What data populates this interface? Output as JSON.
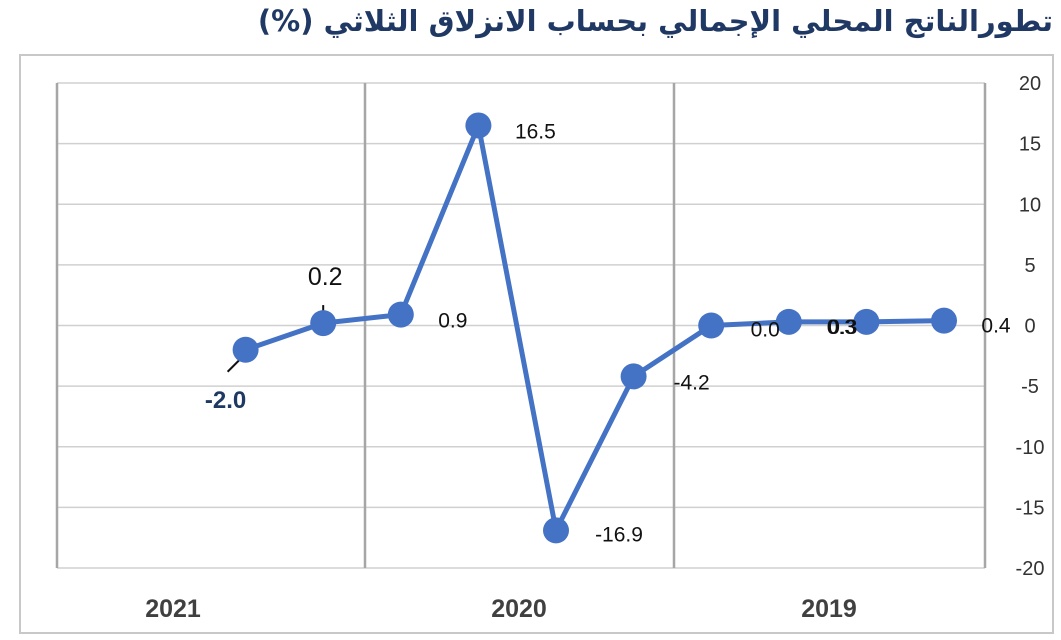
{
  "chart_data": {
    "type": "line",
    "title": "تطورالناتج المحلي الإجمالي بحساب الانزلاق الثلاثي (%)",
    "year_labels": [
      "2019",
      "2020",
      "2021"
    ],
    "series": [
      {
        "values": [
          0.4,
          0.3,
          0.3,
          0.0,
          -4.2,
          -16.9,
          16.5,
          0.9,
          0.2,
          -2.0
        ],
        "labels": [
          "0.4",
          "0.3",
          "0.3",
          "0.0",
          "-4.2",
          "-16.9",
          "16.5",
          "0.9",
          "0.2",
          "-2.0"
        ]
      }
    ],
    "yticks": [
      "20",
      "15",
      "10",
      "5",
      "0",
      "-5",
      "-10",
      "-15",
      "-20"
    ],
    "ylim": [
      -20,
      20
    ],
    "y_axis_side": "right",
    "x_direction": "right-to-left",
    "grid": true,
    "line_color": "#4472c4",
    "marker_color": "#4472c4",
    "title_color": "#1f3864"
  }
}
